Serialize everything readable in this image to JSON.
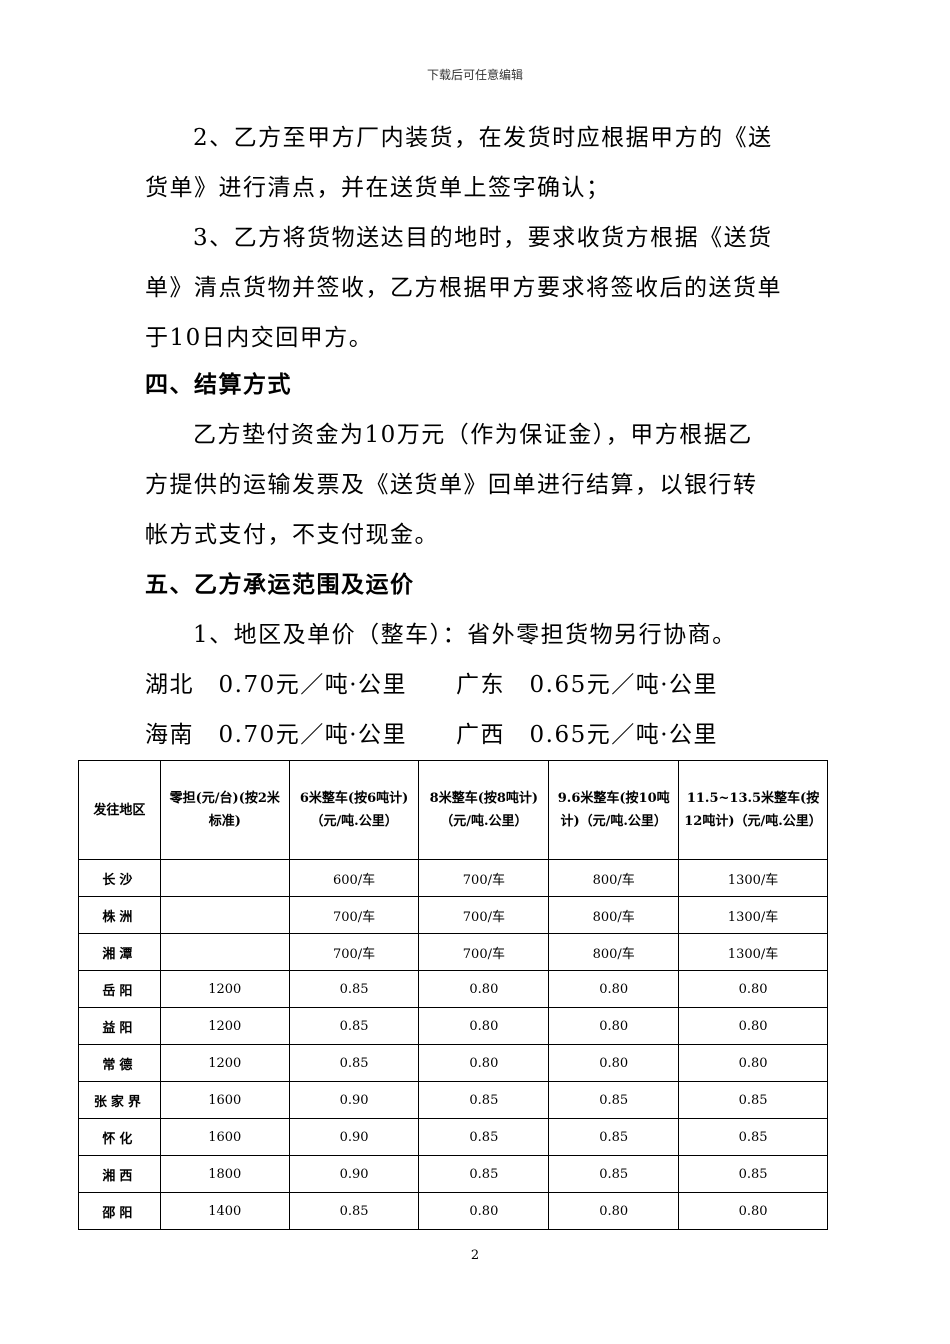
{
  "header": "下载后可任意编辑",
  "lines": [
    "2、乙方至甲方厂内装货，在发货时应根据甲方的《送",
    "货单》进行清点，并在送货单上签字确认；",
    "3、乙方将货物送达目的地时，要求收货方根据《送货",
    "单》清点货物并签收，乙方根据甲方要求将签收后的送货单",
    "于10日内交回甲方。",
    "四、结算方式",
    "乙方垫付资金为10万元（作为保证金），甲方根据乙",
    "方提供的运输发票及《送货单》回单进行结算，以银行转",
    "帐方式支付，不支付现金。",
    "五、乙方承运范围及运价",
    "1、地区及单价（整车）：省外零担货物另行协商。",
    "湖北　0.70元／吨·公里　　广东　0.65元／吨·公里",
    "海南　0.70元／吨·公里　　广西　0.65元／吨·公里"
  ],
  "table": {
    "headers": [
      "发往地区",
      "零担(元/台)(按2米标准)",
      "6米整车(按6吨计)（元/吨.公里）",
      "8米整车(按8吨计)（元/吨.公里）",
      "9.6米整车(按10吨计)（元/吨.公里）",
      "11.5~13.5米整车(按12吨计)（元/吨.公里）"
    ],
    "rows": [
      [
        "长沙",
        "",
        "600/车",
        "700/车",
        "800/车",
        "1300/车"
      ],
      [
        "株洲",
        "",
        "700/车",
        "700/车",
        "800/车",
        "1300/车"
      ],
      [
        "湘潭",
        "",
        "700/车",
        "700/车",
        "800/车",
        "1300/车"
      ],
      [
        "岳阳",
        "1200",
        "0.85",
        "0.80",
        "0.80",
        "0.80"
      ],
      [
        "益阳",
        "1200",
        "0.85",
        "0.80",
        "0.80",
        "0.80"
      ],
      [
        "常德",
        "1200",
        "0.85",
        "0.80",
        "0.80",
        "0.80"
      ],
      [
        "张家界",
        "1600",
        "0.90",
        "0.85",
        "0.85",
        "0.85"
      ],
      [
        "怀化",
        "1600",
        "0.90",
        "0.85",
        "0.85",
        "0.85"
      ],
      [
        "湘西",
        "1800",
        "0.90",
        "0.85",
        "0.85",
        "0.85"
      ],
      [
        "邵阳",
        "1400",
        "0.85",
        "0.80",
        "0.80",
        "0.80"
      ]
    ]
  },
  "page_number": "2"
}
